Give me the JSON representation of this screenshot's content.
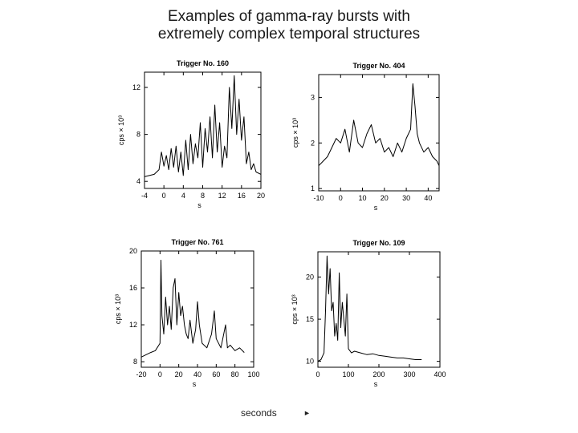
{
  "title": {
    "line1": "Examples of gamma-ray bursts with",
    "line2": "extremely complex temporal structures"
  },
  "footer": {
    "label": "seconds",
    "arrow": "►"
  },
  "colors": {
    "line": "#000000",
    "frame": "#000000",
    "background": "#ffffff"
  },
  "chart_data": [
    {
      "type": "line",
      "title": "Trigger No. 160",
      "xlabel": "s",
      "ylabel": "cps × 10³",
      "xlim": [
        -4,
        20
      ],
      "ylim": [
        3.4,
        13.3
      ],
      "xticks": [
        -4,
        0,
        4,
        8,
        12,
        16,
        20
      ],
      "yticks": [
        4,
        8,
        12
      ],
      "x": [
        -4,
        -3,
        -2,
        -1,
        -0.5,
        0,
        0.5,
        1,
        1.5,
        2,
        2.5,
        3,
        3.5,
        4,
        4.5,
        5,
        5.5,
        6,
        6.5,
        7,
        7.5,
        8,
        8.5,
        9,
        9.5,
        10,
        10.5,
        11,
        11.5,
        12,
        12.5,
        13,
        13.5,
        14,
        14.5,
        15,
        15.5,
        16,
        16.5,
        17,
        17.5,
        18,
        18.5,
        19,
        20
      ],
      "y": [
        4.4,
        4.5,
        4.6,
        5.0,
        6.5,
        5.3,
        6.2,
        5.0,
        6.8,
        5.2,
        7.0,
        4.8,
        6.5,
        4.5,
        7.5,
        5.0,
        8.0,
        5.5,
        7.2,
        6.0,
        9.0,
        5.2,
        8.5,
        6.5,
        9.5,
        6.0,
        10.5,
        6.5,
        9.0,
        5.2,
        7.0,
        6.0,
        12.0,
        8.5,
        13.0,
        8.0,
        11.0,
        7.5,
        9.5,
        5.5,
        6.5,
        5.0,
        5.5,
        4.8,
        4.6
      ]
    },
    {
      "type": "line",
      "title": "Trigger No. 404",
      "xlabel": "s",
      "ylabel": "cps × 10³",
      "xlim": [
        -10,
        45
      ],
      "ylim": [
        0.95,
        3.5
      ],
      "xticks": [
        -10,
        0,
        10,
        20,
        30,
        40
      ],
      "yticks": [
        1,
        2,
        3
      ],
      "x": [
        -10,
        -8,
        -6,
        -4,
        -2,
        0,
        2,
        4,
        6,
        8,
        10,
        12,
        14,
        16,
        18,
        20,
        22,
        24,
        26,
        28,
        30,
        32,
        33,
        34,
        35,
        36,
        38,
        40,
        42,
        44,
        45
      ],
      "y": [
        1.5,
        1.6,
        1.7,
        1.9,
        2.1,
        2.0,
        2.3,
        1.8,
        2.5,
        2.0,
        1.9,
        2.2,
        2.4,
        2.0,
        2.1,
        1.8,
        1.9,
        1.7,
        2.0,
        1.8,
        2.1,
        2.3,
        3.3,
        2.8,
        2.2,
        2.0,
        1.8,
        1.9,
        1.7,
        1.6,
        1.5
      ]
    },
    {
      "type": "line",
      "title": "Trigger No. 761",
      "xlabel": "s",
      "ylabel": "cps × 10³",
      "xlim": [
        -20,
        100
      ],
      "ylim": [
        7.4,
        20
      ],
      "xticks": [
        -20,
        0,
        20,
        40,
        60,
        80,
        100
      ],
      "yticks": [
        8,
        12,
        16,
        20
      ],
      "x": [
        -20,
        -10,
        -5,
        0,
        1,
        2,
        4,
        6,
        8,
        10,
        12,
        14,
        16,
        18,
        20,
        22,
        24,
        26,
        28,
        30,
        32,
        35,
        38,
        40,
        42,
        45,
        50,
        55,
        58,
        60,
        65,
        70,
        72,
        75,
        80,
        85,
        90
      ],
      "y": [
        8.5,
        9.0,
        9.2,
        10.0,
        19.0,
        13.0,
        11.0,
        15.0,
        12.0,
        14.0,
        11.5,
        16.0,
        17.0,
        12.0,
        15.5,
        13.0,
        14.0,
        12.0,
        11.0,
        10.5,
        12.5,
        10.0,
        11.5,
        14.5,
        12.0,
        10.0,
        9.5,
        11.0,
        13.5,
        10.5,
        9.5,
        12.0,
        9.5,
        9.8,
        9.2,
        9.5,
        9.0
      ]
    },
    {
      "type": "line",
      "title": "Trigger No. 109",
      "xlabel": "s",
      "ylabel": "cps × 10³",
      "xlim": [
        0,
        400
      ],
      "ylim": [
        9.3,
        23
      ],
      "xticks": [
        0,
        100,
        200,
        300,
        400
      ],
      "yticks": [
        10,
        15,
        20
      ],
      "x": [
        0,
        10,
        20,
        25,
        30,
        35,
        40,
        45,
        50,
        55,
        60,
        65,
        70,
        75,
        80,
        85,
        90,
        95,
        100,
        110,
        120,
        140,
        160,
        180,
        200,
        220,
        240,
        260,
        280,
        300,
        320,
        340
      ],
      "y": [
        10.0,
        10.2,
        11.0,
        16.0,
        22.5,
        18.0,
        21.0,
        16.0,
        17.0,
        13.0,
        14.5,
        12.5,
        20.5,
        14.0,
        17.0,
        15.0,
        13.0,
        18.0,
        11.5,
        11.0,
        11.2,
        11.0,
        10.8,
        10.9,
        10.7,
        10.6,
        10.5,
        10.4,
        10.4,
        10.3,
        10.2,
        10.2
      ]
    }
  ]
}
